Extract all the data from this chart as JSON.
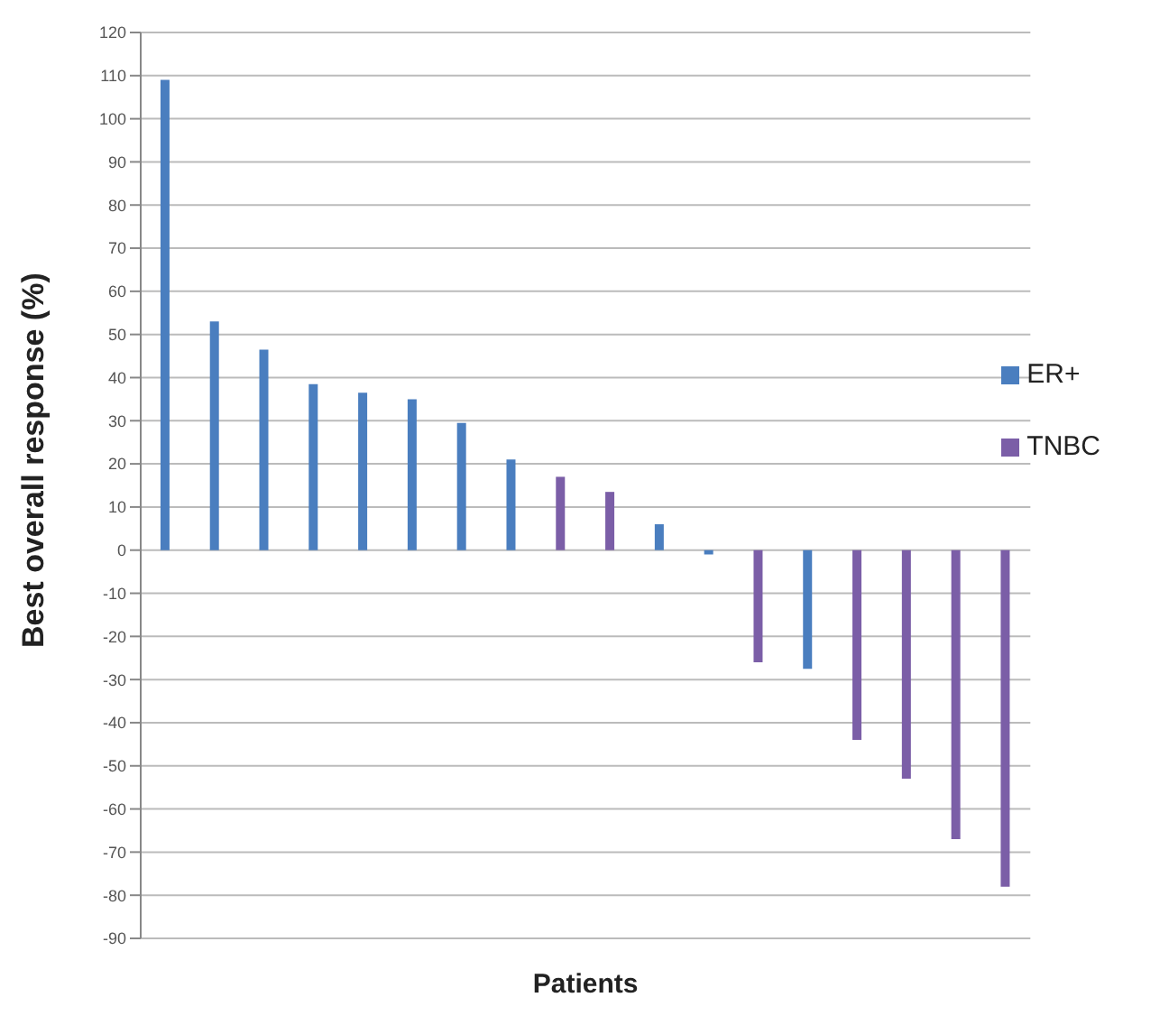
{
  "chart_data": {
    "type": "bar",
    "xlabel": "Patients",
    "ylabel": "Best overall response (%)",
    "categories": [
      null,
      null,
      null,
      null,
      null,
      null,
      null,
      null,
      null,
      null,
      null,
      null,
      null,
      null,
      null,
      null,
      null,
      null
    ],
    "series": [
      {
        "name": "ER+",
        "color": "#4a7ebf",
        "values": [
          109,
          53,
          46.5,
          38.5,
          36.5,
          35,
          29.5,
          21,
          null,
          null,
          6,
          -1,
          null,
          -27.5,
          null,
          null,
          null,
          null
        ]
      },
      {
        "name": "TNBC",
        "color": "#7b5ea7",
        "values": [
          null,
          null,
          null,
          null,
          null,
          null,
          null,
          null,
          17,
          13.5,
          null,
          null,
          -26,
          null,
          -44,
          -53,
          -67,
          -78
        ]
      }
    ],
    "stacked": true,
    "ylim": [
      -90,
      120
    ],
    "yticks": [
      -90,
      -80,
      -70,
      -60,
      -50,
      -40,
      -30,
      -20,
      -10,
      0,
      10,
      20,
      30,
      40,
      50,
      60,
      70,
      80,
      90,
      100,
      110,
      120
    ],
    "grid": "y",
    "legend": "right",
    "tick_labels": "y"
  }
}
